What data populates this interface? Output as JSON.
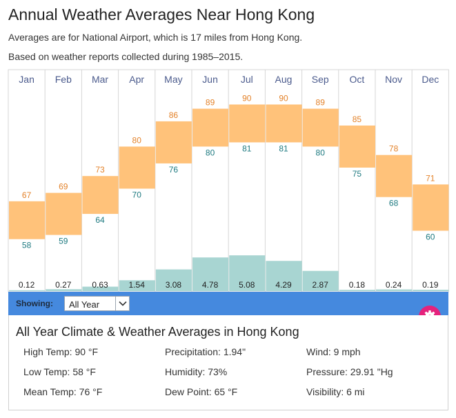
{
  "header": {
    "title": "Annual Weather Averages Near Hong Kong",
    "subtitle1": "Averages are for National Airport, which is 17 miles from Hong Kong.",
    "subtitle2": "Based on weather reports collected during 1985–2015."
  },
  "chart_data": {
    "type": "bar",
    "categories": [
      "Jan",
      "Feb",
      "Mar",
      "Apr",
      "May",
      "Jun",
      "Jul",
      "Aug",
      "Sep",
      "Oct",
      "Nov",
      "Dec"
    ],
    "series": [
      {
        "name": "",
        "values": [
          67,
          69,
          73,
          80,
          86,
          89,
          90,
          90,
          89,
          85,
          78,
          71
        ]
      },
      {
        "name": "",
        "values": [
          58,
          59,
          64,
          70,
          76,
          80,
          81,
          81,
          80,
          75,
          68,
          60
        ]
      },
      {
        "name": "",
        "values": [
          0.12,
          0.27,
          0.63,
          1.54,
          3.08,
          4.78,
          5.08,
          4.29,
          2.87,
          0.18,
          0.24,
          0.19
        ]
      }
    ],
    "value_labels_high": [
      "67",
      "69",
      "73",
      "80",
      "86",
      "89",
      "90",
      "90",
      "89",
      "85",
      "78",
      "71"
    ],
    "value_labels_low": [
      "58",
      "59",
      "64",
      "70",
      "76",
      "80",
      "81",
      "81",
      "80",
      "75",
      "68",
      "60"
    ],
    "value_labels_precip": [
      "0.12",
      "0.27",
      "0.63",
      "1.54",
      "3.08",
      "4.78",
      "5.08",
      "4.29",
      "2.87",
      "0.18",
      "0.24",
      "0.19"
    ],
    "colors": {
      "temp_band": "#ffc27a",
      "high_label": "#e3822a",
      "low_label": "#1e7a80",
      "precip": "#a8d5d2",
      "month_label": "#4a5a8c",
      "grid": "#d6d6d6"
    }
  },
  "controls": {
    "showing_label": "Showing:",
    "period_value": "All Year",
    "chevron_icon": "chevron-down-icon",
    "gear_icon": "gear-icon",
    "bar_color": "#4589de",
    "gear_color": "#e5227c"
  },
  "summary": {
    "title": "All Year Climate & Weather Averages in Hong Kong",
    "high_temp": "High Temp: 90 °F",
    "low_temp": "Low Temp: 58 °F",
    "mean_temp": "Mean Temp: 76 °F",
    "precipitation": "Precipitation: 1.94\"",
    "humidity": "Humidity: 73%",
    "dew_point": "Dew Point: 65 °F",
    "wind": "Wind: 9 mph",
    "pressure": "Pressure: 29.91 \"Hg",
    "visibility": "Visibility: 6 mi"
  }
}
